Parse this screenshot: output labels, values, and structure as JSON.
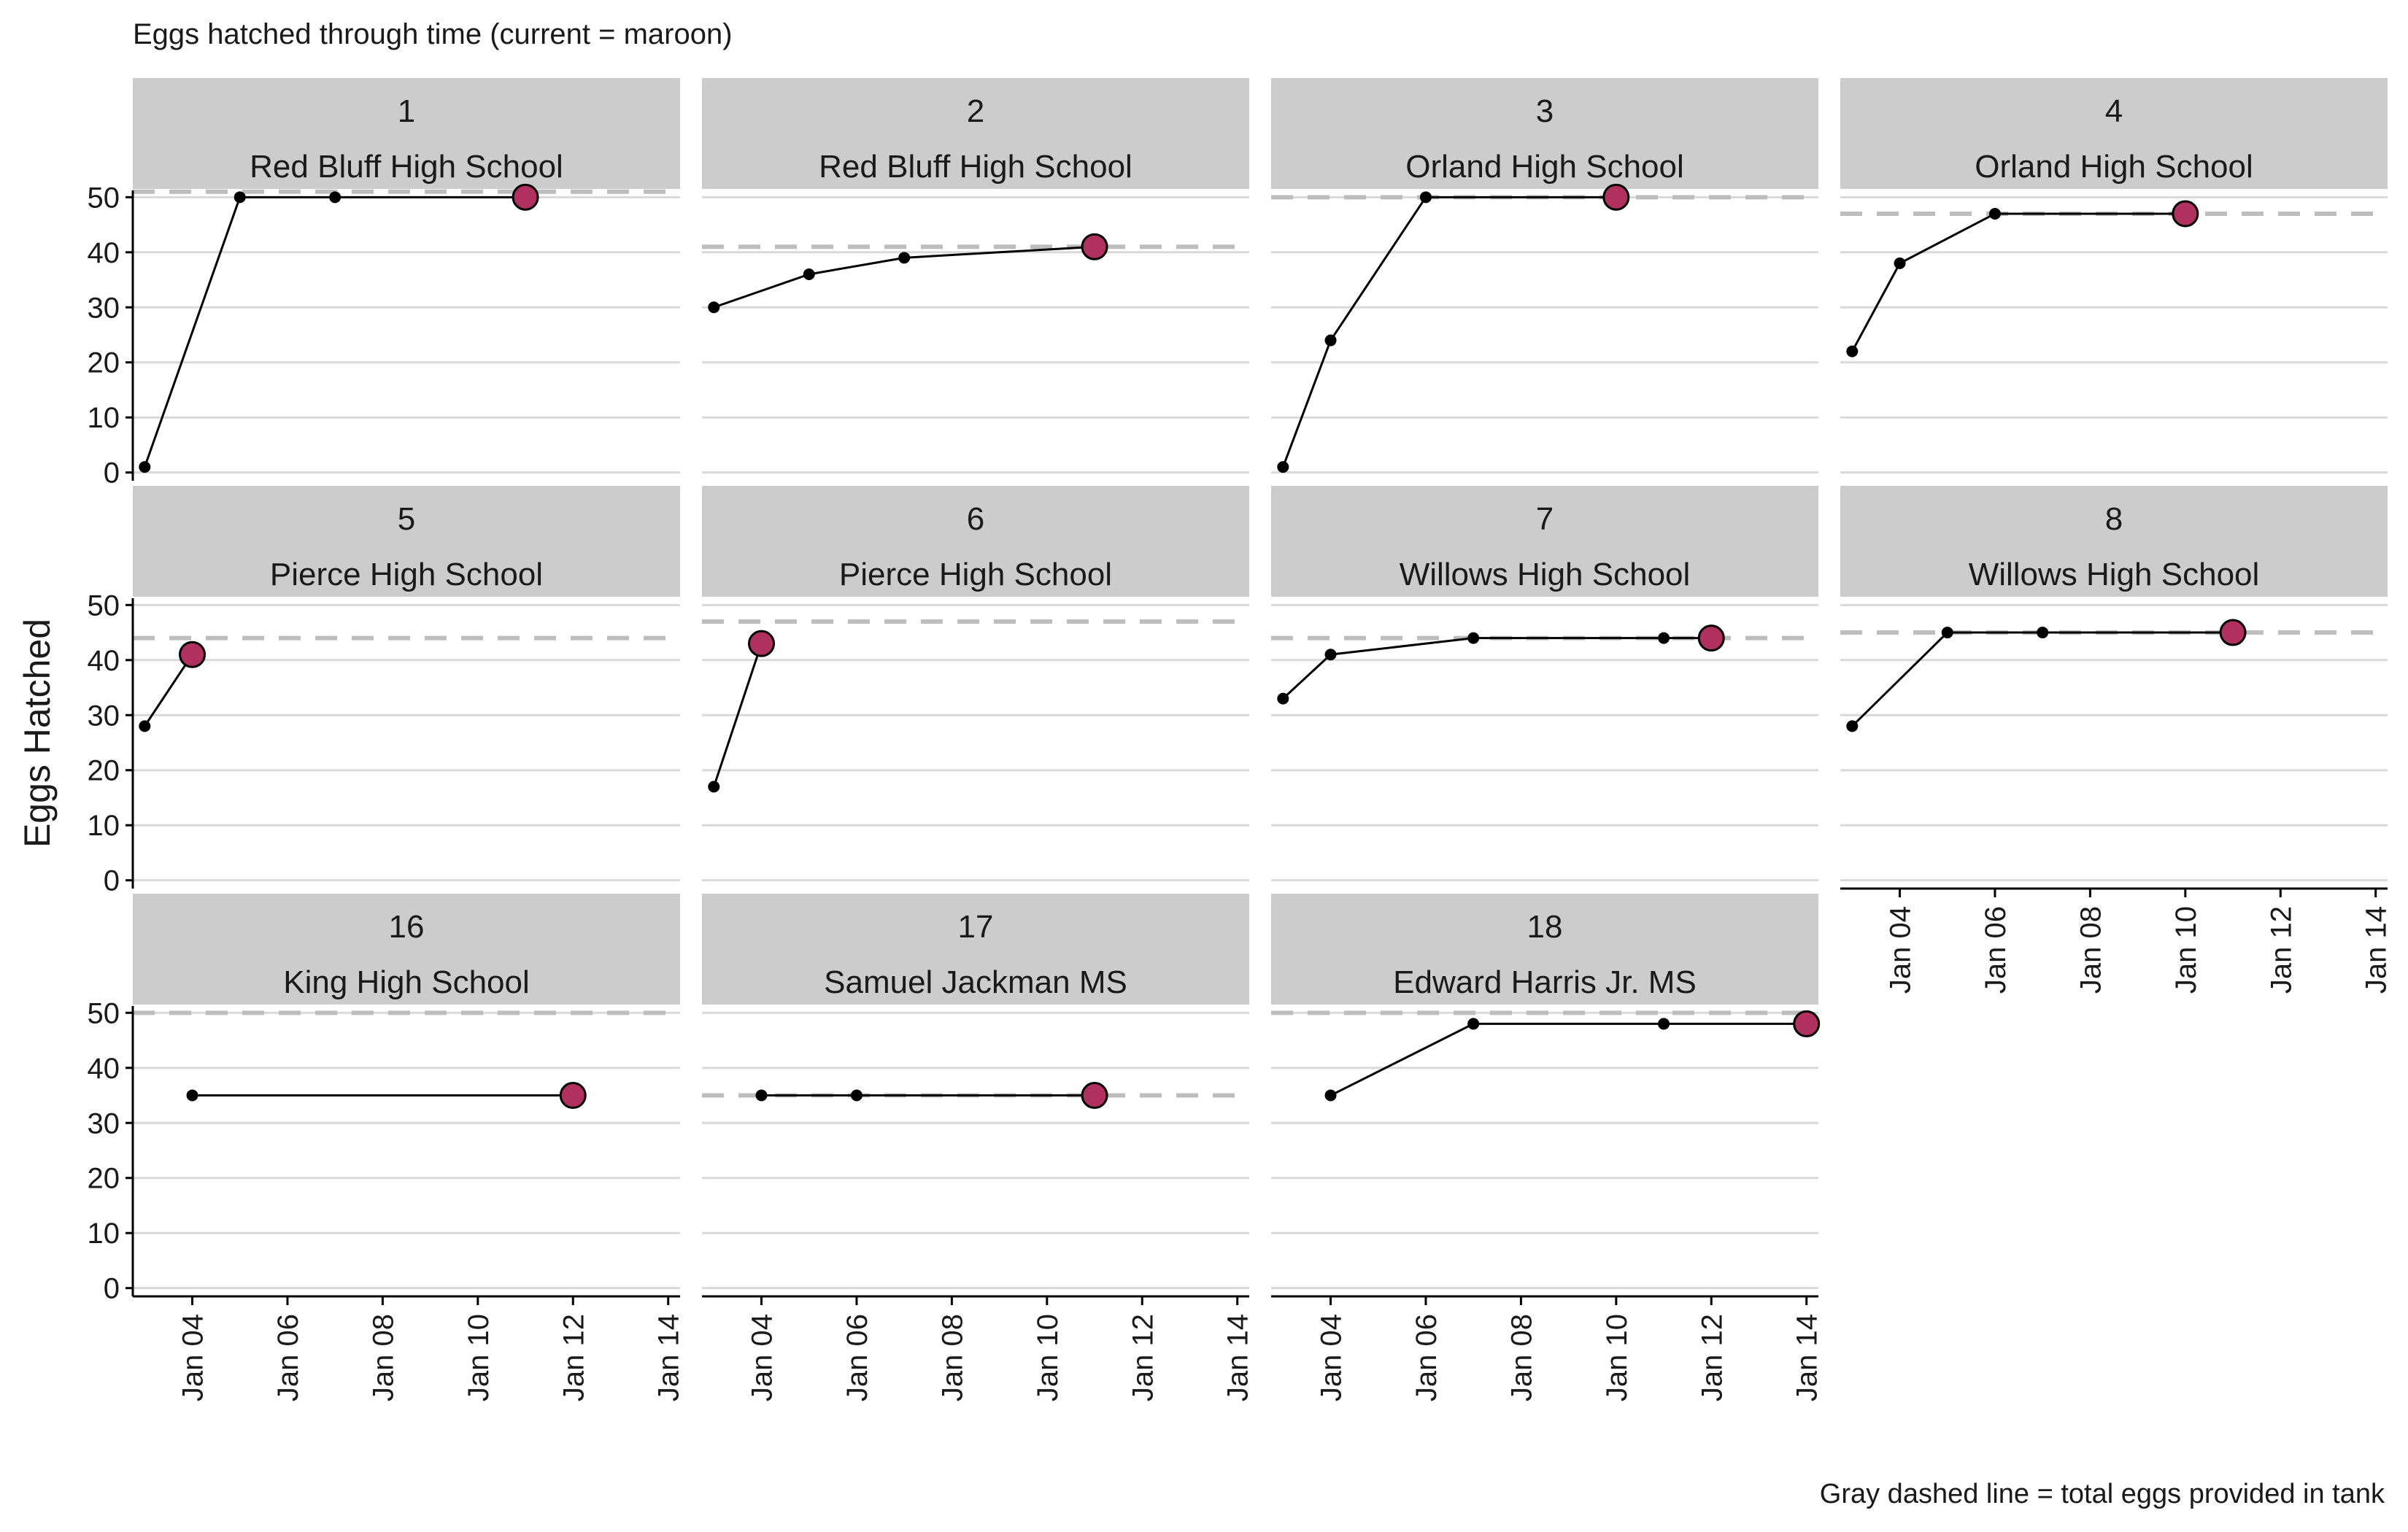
{
  "title": "Eggs hatched through time (current = maroon)",
  "caption": "Gray dashed line = total eggs provided in tank",
  "colors": {
    "current_point": "#b03060",
    "line": "#000000",
    "total_line": "#bdbdbd",
    "strip_bg": "#cccccc",
    "grid": "#d9d9d9"
  },
  "chart_data": {
    "type": "line",
    "ylabel": "Eggs Hatched",
    "ylim": [
      0,
      50
    ],
    "yticks": [
      0,
      10,
      20,
      30,
      40,
      50
    ],
    "xlim": [
      "Jan 03",
      "Jan 14"
    ],
    "xticks": [
      "Jan 04",
      "Jan 06",
      "Jan 08",
      "Jan 10",
      "Jan 12",
      "Jan 14"
    ],
    "grid": "horizontal",
    "panels": [
      {
        "id": "1",
        "school": "Red Bluff High School",
        "total": 51,
        "points": [
          {
            "x": "Jan 03",
            "y": 1
          },
          {
            "x": "Jan 05",
            "y": 50
          },
          {
            "x": "Jan 07",
            "y": 50
          },
          {
            "x": "Jan 11",
            "y": 50
          }
        ]
      },
      {
        "id": "2",
        "school": "Red Bluff High School",
        "total": 41,
        "points": [
          {
            "x": "Jan 03",
            "y": 30
          },
          {
            "x": "Jan 05",
            "y": 36
          },
          {
            "x": "Jan 07",
            "y": 39
          },
          {
            "x": "Jan 11",
            "y": 41
          }
        ]
      },
      {
        "id": "3",
        "school": "Orland High School",
        "total": 50,
        "points": [
          {
            "x": "Jan 03",
            "y": 1
          },
          {
            "x": "Jan 04",
            "y": 24
          },
          {
            "x": "Jan 06",
            "y": 50
          },
          {
            "x": "Jan 10",
            "y": 50
          }
        ]
      },
      {
        "id": "4",
        "school": "Orland High School",
        "total": 47,
        "points": [
          {
            "x": "Jan 03",
            "y": 22
          },
          {
            "x": "Jan 04",
            "y": 38
          },
          {
            "x": "Jan 06",
            "y": 47
          },
          {
            "x": "Jan 10",
            "y": 47
          }
        ]
      },
      {
        "id": "5",
        "school": "Pierce High School",
        "total": 44,
        "points": [
          {
            "x": "Jan 03",
            "y": 28
          },
          {
            "x": "Jan 04",
            "y": 41
          }
        ]
      },
      {
        "id": "6",
        "school": "Pierce High School",
        "total": 47,
        "points": [
          {
            "x": "Jan 03",
            "y": 17
          },
          {
            "x": "Jan 04",
            "y": 43
          }
        ]
      },
      {
        "id": "7",
        "school": "Willows High School",
        "total": 44,
        "points": [
          {
            "x": "Jan 03",
            "y": 33
          },
          {
            "x": "Jan 04",
            "y": 41
          },
          {
            "x": "Jan 07",
            "y": 44
          },
          {
            "x": "Jan 11",
            "y": 44
          },
          {
            "x": "Jan 12",
            "y": 44
          }
        ]
      },
      {
        "id": "8",
        "school": "Willows High School",
        "total": 45,
        "points": [
          {
            "x": "Jan 03",
            "y": 28
          },
          {
            "x": "Jan 05",
            "y": 45
          },
          {
            "x": "Jan 07",
            "y": 45
          },
          {
            "x": "Jan 11",
            "y": 45
          }
        ]
      },
      {
        "id": "16",
        "school": "King High School",
        "total": 50,
        "points": [
          {
            "x": "Jan 04",
            "y": 35
          },
          {
            "x": "Jan 12",
            "y": 35
          }
        ]
      },
      {
        "id": "17",
        "school": "Samuel Jackman MS",
        "total": 35,
        "points": [
          {
            "x": "Jan 04",
            "y": 35
          },
          {
            "x": "Jan 06",
            "y": 35
          },
          {
            "x": "Jan 11",
            "y": 35
          }
        ]
      },
      {
        "id": "18",
        "school": "Edward Harris Jr. MS",
        "total": 50,
        "points": [
          {
            "x": "Jan 04",
            "y": 35
          },
          {
            "x": "Jan 07",
            "y": 48
          },
          {
            "x": "Jan 11",
            "y": 48
          },
          {
            "x": "Jan 14",
            "y": 48
          }
        ]
      }
    ]
  }
}
